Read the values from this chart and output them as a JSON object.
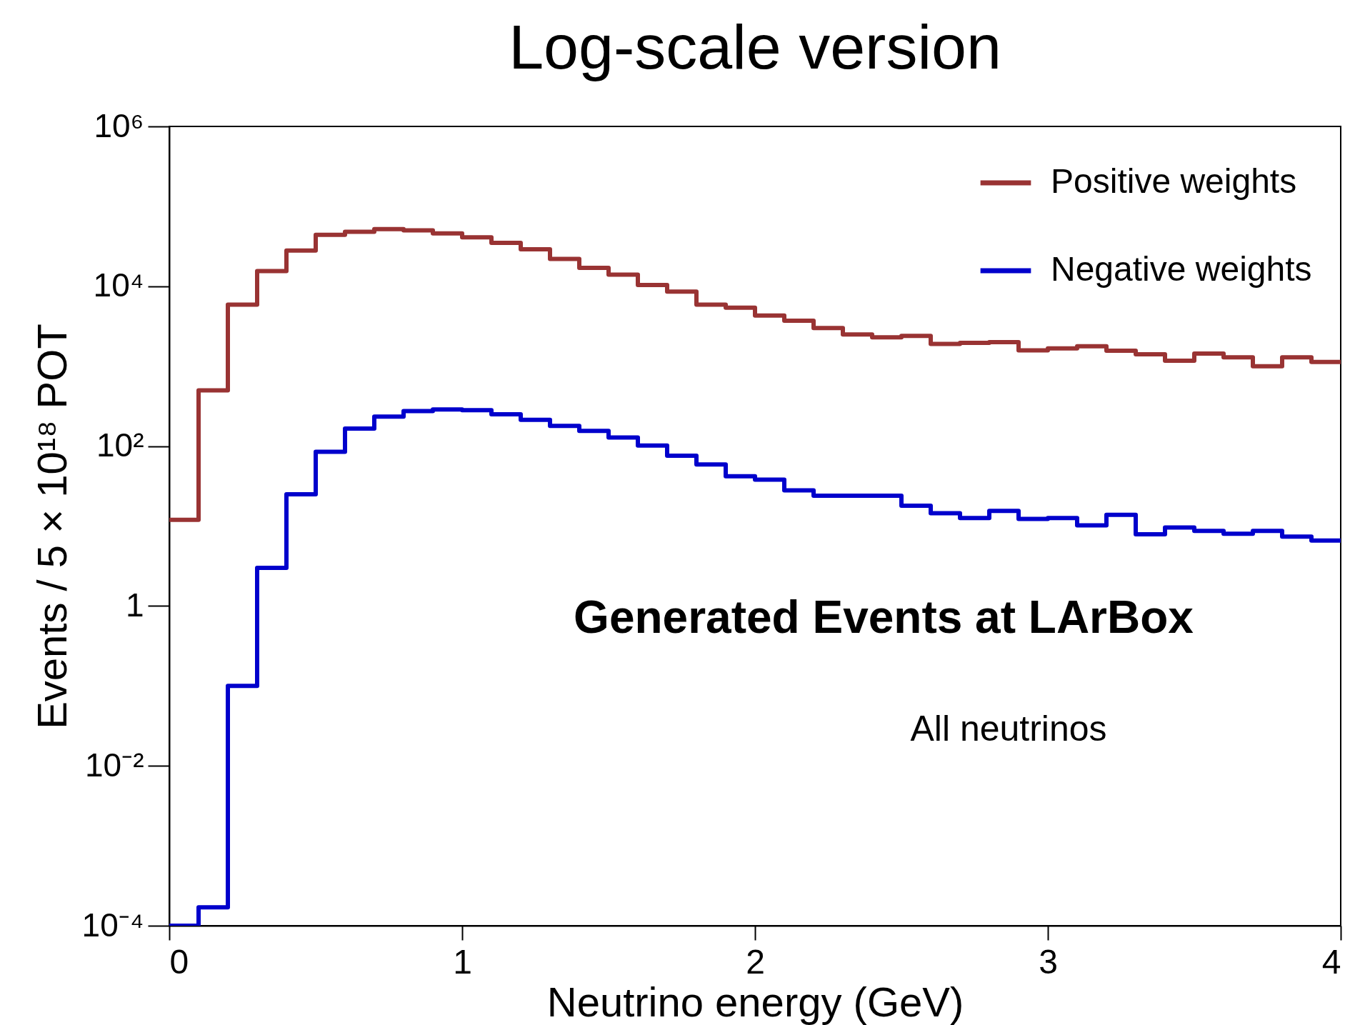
{
  "chart_data": {
    "type": "histogram",
    "title": "Log-scale version",
    "xlabel": "Neutrino energy (GeV)",
    "ylabel": "Events / 5 × 10¹⁸ POT",
    "bins": [
      0,
      0.1,
      0.2,
      0.3,
      0.4,
      0.5,
      0.6,
      0.7,
      0.8,
      0.9,
      1.0,
      1.1,
      1.2,
      1.3,
      1.4,
      1.5,
      1.6,
      1.7,
      1.8,
      1.9,
      2.0,
      2.1,
      2.2,
      2.3,
      2.4,
      2.5,
      2.6,
      2.7,
      2.8,
      2.9,
      3.0,
      3.1,
      3.2,
      3.3,
      3.4,
      3.5,
      3.6,
      3.7,
      3.8,
      3.9,
      4.0
    ],
    "series": [
      {
        "name": "Positive weights",
        "color": "#993333",
        "values": [
          12,
          500,
          5900,
          15500,
          28000,
          44000,
          48000,
          52000,
          50000,
          46000,
          41000,
          35000,
          29000,
          22000,
          17000,
          14000,
          10400,
          8600,
          5900,
          5400,
          4300,
          3700,
          3000,
          2500,
          2300,
          2400,
          1900,
          1960,
          2000,
          1580,
          1670,
          1780,
          1560,
          1410,
          1170,
          1440,
          1290,
          1000,
          1290,
          1130
        ]
      },
      {
        "name": "Negative weights",
        "color": "#0000cc",
        "values": [
          0.0001,
          0.00017,
          0.1,
          3,
          25,
          85,
          166,
          234,
          274,
          288,
          282,
          251,
          214,
          179,
          155,
          128,
          102,
          76,
          59,
          42,
          38,
          28,
          24,
          24,
          24,
          18,
          14.5,
          12.6,
          15.5,
          12.3,
          12.6,
          10.2,
          13.8,
          7.9,
          9.6,
          8.7,
          8.0,
          8.7,
          7.4,
          6.6
        ]
      }
    ],
    "xlim": [
      0,
      4
    ],
    "xticks": [
      0,
      1,
      2,
      3,
      4
    ],
    "ylim": [
      0.0001,
      1000000
    ],
    "yticks": [
      {
        "value": 0.0001,
        "label": "10⁻⁴"
      },
      {
        "value": 0.01,
        "label": "10⁻²"
      },
      1,
      {
        "value": 100,
        "label": "10²"
      },
      {
        "value": 10000,
        "label": "10⁴"
      },
      {
        "value": 1000000,
        "label": "10⁶"
      }
    ],
    "log": true,
    "legend": "top right",
    "annotations": [
      "Generated  Events at LArBox",
      "All neutrinos"
    ]
  }
}
